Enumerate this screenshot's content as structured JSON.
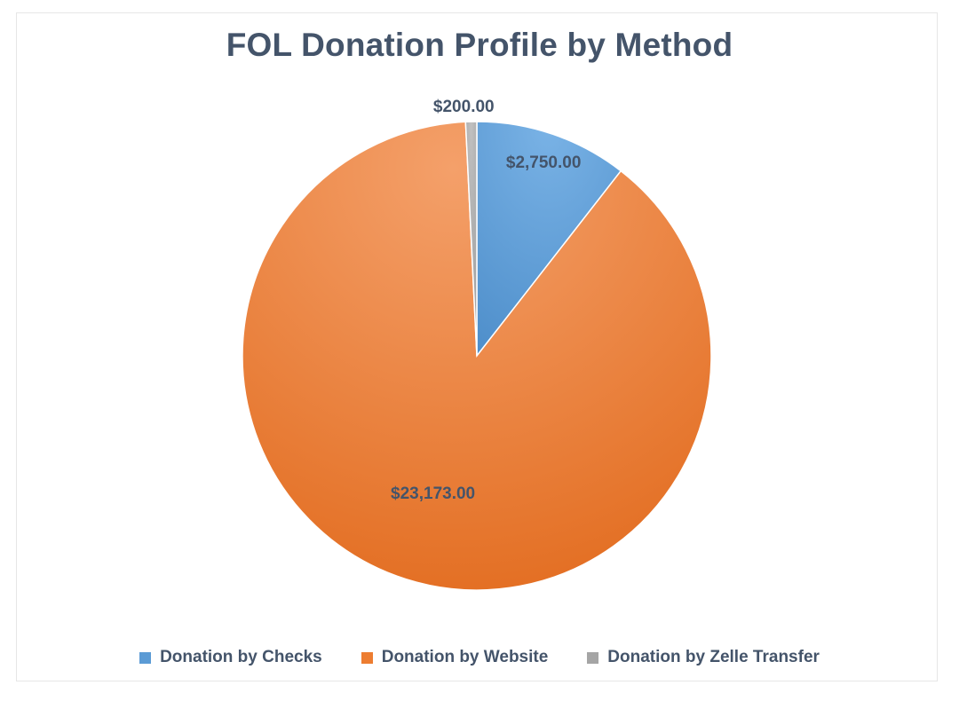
{
  "chart_data": {
    "type": "pie",
    "title": "FOL Donation Profile by Method",
    "categories": [
      "Donation by Checks",
      "Donation by Website",
      "Donation by Zelle Transfer"
    ],
    "values": [
      2750.0,
      23173.0,
      200.0
    ],
    "value_labels": [
      "$2,750.00",
      "$23,173.00",
      "$200.00"
    ],
    "colors": [
      "#5b9bd5",
      "#ed7d31",
      "#a5a5a5"
    ],
    "legend_position": "bottom",
    "start_angle": "top, clockwise"
  }
}
